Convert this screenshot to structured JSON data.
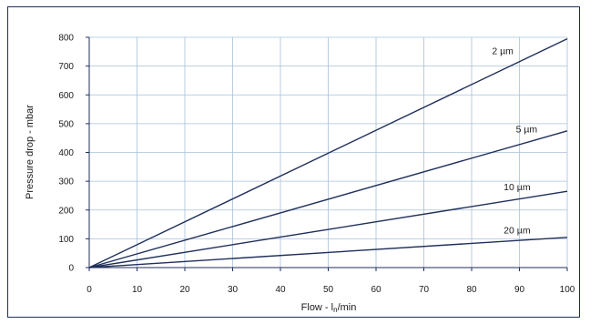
{
  "chart_data": {
    "type": "line",
    "xlabel": "Flow - ln/min",
    "ylabel": "Pressure drop - mbar",
    "xlim": [
      0,
      100
    ],
    "ylim": [
      0,
      800
    ],
    "x_ticks": [
      0,
      10,
      20,
      30,
      40,
      50,
      60,
      70,
      80,
      90,
      100
    ],
    "y_ticks": [
      0,
      100,
      200,
      300,
      400,
      500,
      600,
      700,
      800
    ],
    "grid": true,
    "x": [
      0,
      100
    ],
    "series": [
      {
        "name": "2 µm",
        "values": [
          0,
          795
        ]
      },
      {
        "name": "5 µm",
        "values": [
          0,
          475
        ]
      },
      {
        "name": "10 µm",
        "values": [
          0,
          265
        ]
      },
      {
        "name": "20 µm",
        "values": [
          0,
          105
        ]
      }
    ],
    "colors": {
      "line": "#1f2f5a",
      "grid": "#a9c0d8"
    }
  }
}
